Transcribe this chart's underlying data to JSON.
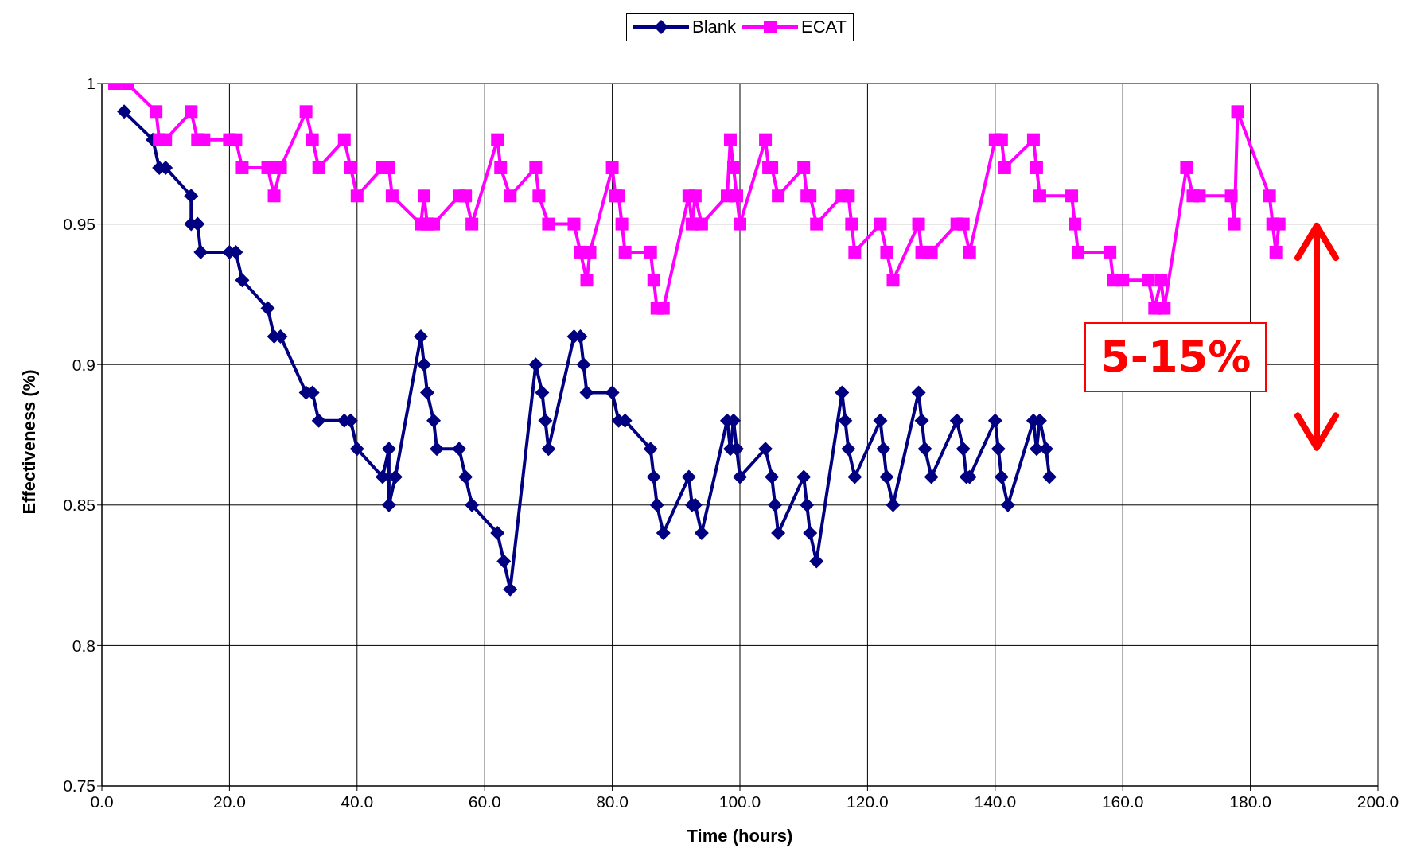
{
  "chart_data": {
    "type": "line",
    "xlabel": "Time (hours)",
    "ylabel": "Effectiveness (%)",
    "xlim": [
      0,
      200
    ],
    "xticks": [
      {
        "value": 0,
        "label": "0.0"
      },
      {
        "value": 20,
        "label": "20.0"
      },
      {
        "value": 40,
        "label": "40.0"
      },
      {
        "value": 60,
        "label": "60.0"
      },
      {
        "value": 80,
        "label": "80.0"
      },
      {
        "value": 100,
        "label": "100.0"
      },
      {
        "value": 120,
        "label": "120.0"
      },
      {
        "value": 140,
        "label": "140.0"
      },
      {
        "value": 160,
        "label": "160.0"
      },
      {
        "value": 180,
        "label": "180.0"
      },
      {
        "value": 200,
        "label": "200.0"
      }
    ],
    "ylim": [
      0.75,
      1
    ],
    "yticks": [
      0.75,
      0.8,
      0.85,
      0.9,
      0.95,
      1
    ],
    "grid": true,
    "legend": "top",
    "series": [
      {
        "name": "Blank",
        "color": "#000080",
        "marker": "diamond",
        "x": [
          3.5,
          8,
          9,
          10,
          14,
          14,
          15,
          15.5,
          20,
          21,
          22,
          26,
          27,
          28,
          32,
          33,
          34,
          38,
          39,
          40,
          44,
          45,
          45,
          46,
          50,
          50.5,
          51,
          52,
          52.5,
          56,
          57,
          58,
          62,
          63,
          64,
          68,
          69,
          69.5,
          70,
          74,
          75,
          75.5,
          76,
          80,
          81,
          82,
          86,
          86.5,
          87,
          88,
          92,
          92.5,
          93,
          94,
          98,
          98.5,
          99,
          99.5,
          100,
          104,
          105,
          105.5,
          106,
          110,
          110.5,
          111,
          112,
          116,
          116.5,
          117,
          118,
          122,
          122.5,
          123,
          124,
          128,
          128.5,
          129,
          130,
          134,
          135,
          135.5,
          136,
          140,
          140.5,
          141,
          142,
          146,
          146.5,
          147,
          148,
          148.5
        ],
        "values": [
          0.99,
          0.98,
          0.97,
          0.97,
          0.96,
          0.95,
          0.95,
          0.94,
          0.94,
          0.94,
          0.93,
          0.92,
          0.91,
          0.91,
          0.89,
          0.89,
          0.88,
          0.88,
          0.88,
          0.87,
          0.86,
          0.87,
          0.85,
          0.86,
          0.91,
          0.9,
          0.89,
          0.88,
          0.87,
          0.87,
          0.86,
          0.85,
          0.84,
          0.83,
          0.82,
          0.9,
          0.89,
          0.88,
          0.87,
          0.91,
          0.91,
          0.9,
          0.89,
          0.89,
          0.88,
          0.88,
          0.87,
          0.86,
          0.85,
          0.84,
          0.86,
          0.85,
          0.85,
          0.84,
          0.88,
          0.87,
          0.88,
          0.87,
          0.86,
          0.87,
          0.86,
          0.85,
          0.84,
          0.86,
          0.85,
          0.84,
          0.83,
          0.89,
          0.88,
          0.87,
          0.86,
          0.88,
          0.87,
          0.86,
          0.85,
          0.89,
          0.88,
          0.87,
          0.86,
          0.88,
          0.87,
          0.86,
          0.86,
          0.88,
          0.87,
          0.86,
          0.85,
          0.88,
          0.87,
          0.88,
          0.87,
          0.86
        ]
      },
      {
        "name": "ECAT",
        "color": "#ff00ff",
        "marker": "square",
        "x": [
          2,
          4,
          8.5,
          9,
          10,
          14,
          15,
          16,
          20,
          21,
          22,
          26,
          27,
          28,
          32,
          33,
          34,
          38,
          39,
          40,
          44,
          45,
          45.5,
          50,
          50.5,
          51,
          52,
          56,
          57,
          58,
          62,
          62.5,
          64,
          68,
          68.5,
          70,
          74,
          75,
          76,
          76.5,
          80,
          80.5,
          81,
          81.5,
          82,
          86,
          86.5,
          87,
          88,
          92,
          92.5,
          93,
          94,
          98,
          98.5,
          99,
          99.5,
          100,
          104,
          104.5,
          105,
          106,
          110,
          110.5,
          111,
          112,
          116,
          117,
          117.5,
          118,
          122,
          123,
          124,
          128,
          128.5,
          130,
          134,
          135,
          136,
          140,
          141,
          141.5,
          146,
          146.5,
          147,
          152,
          152.5,
          153,
          158,
          158.5,
          160,
          164,
          165,
          166,
          166.5,
          170,
          171,
          172,
          177,
          177.5,
          178,
          183,
          183.5,
          184,
          184.5
        ],
        "values": [
          1,
          1,
          0.99,
          0.98,
          0.98,
          0.99,
          0.98,
          0.98,
          0.98,
          0.98,
          0.97,
          0.97,
          0.96,
          0.97,
          0.99,
          0.98,
          0.97,
          0.98,
          0.97,
          0.96,
          0.97,
          0.97,
          0.96,
          0.95,
          0.96,
          0.95,
          0.95,
          0.96,
          0.96,
          0.95,
          0.98,
          0.97,
          0.96,
          0.97,
          0.96,
          0.95,
          0.95,
          0.94,
          0.93,
          0.94,
          0.97,
          0.96,
          0.96,
          0.95,
          0.94,
          0.94,
          0.93,
          0.92,
          0.92,
          0.96,
          0.95,
          0.96,
          0.95,
          0.96,
          0.98,
          0.97,
          0.96,
          0.95,
          0.98,
          0.97,
          0.97,
          0.96,
          0.97,
          0.96,
          0.96,
          0.95,
          0.96,
          0.96,
          0.95,
          0.94,
          0.95,
          0.94,
          0.93,
          0.95,
          0.94,
          0.94,
          0.95,
          0.95,
          0.94,
          0.98,
          0.98,
          0.97,
          0.98,
          0.97,
          0.96,
          0.96,
          0.95,
          0.94,
          0.94,
          0.93,
          0.93,
          0.93,
          0.92,
          0.93,
          0.92,
          0.97,
          0.96,
          0.96,
          0.96,
          0.95,
          0.99,
          0.96,
          0.95,
          0.94,
          0.95
        ]
      }
    ],
    "annotations": [
      "5-15%"
    ]
  }
}
